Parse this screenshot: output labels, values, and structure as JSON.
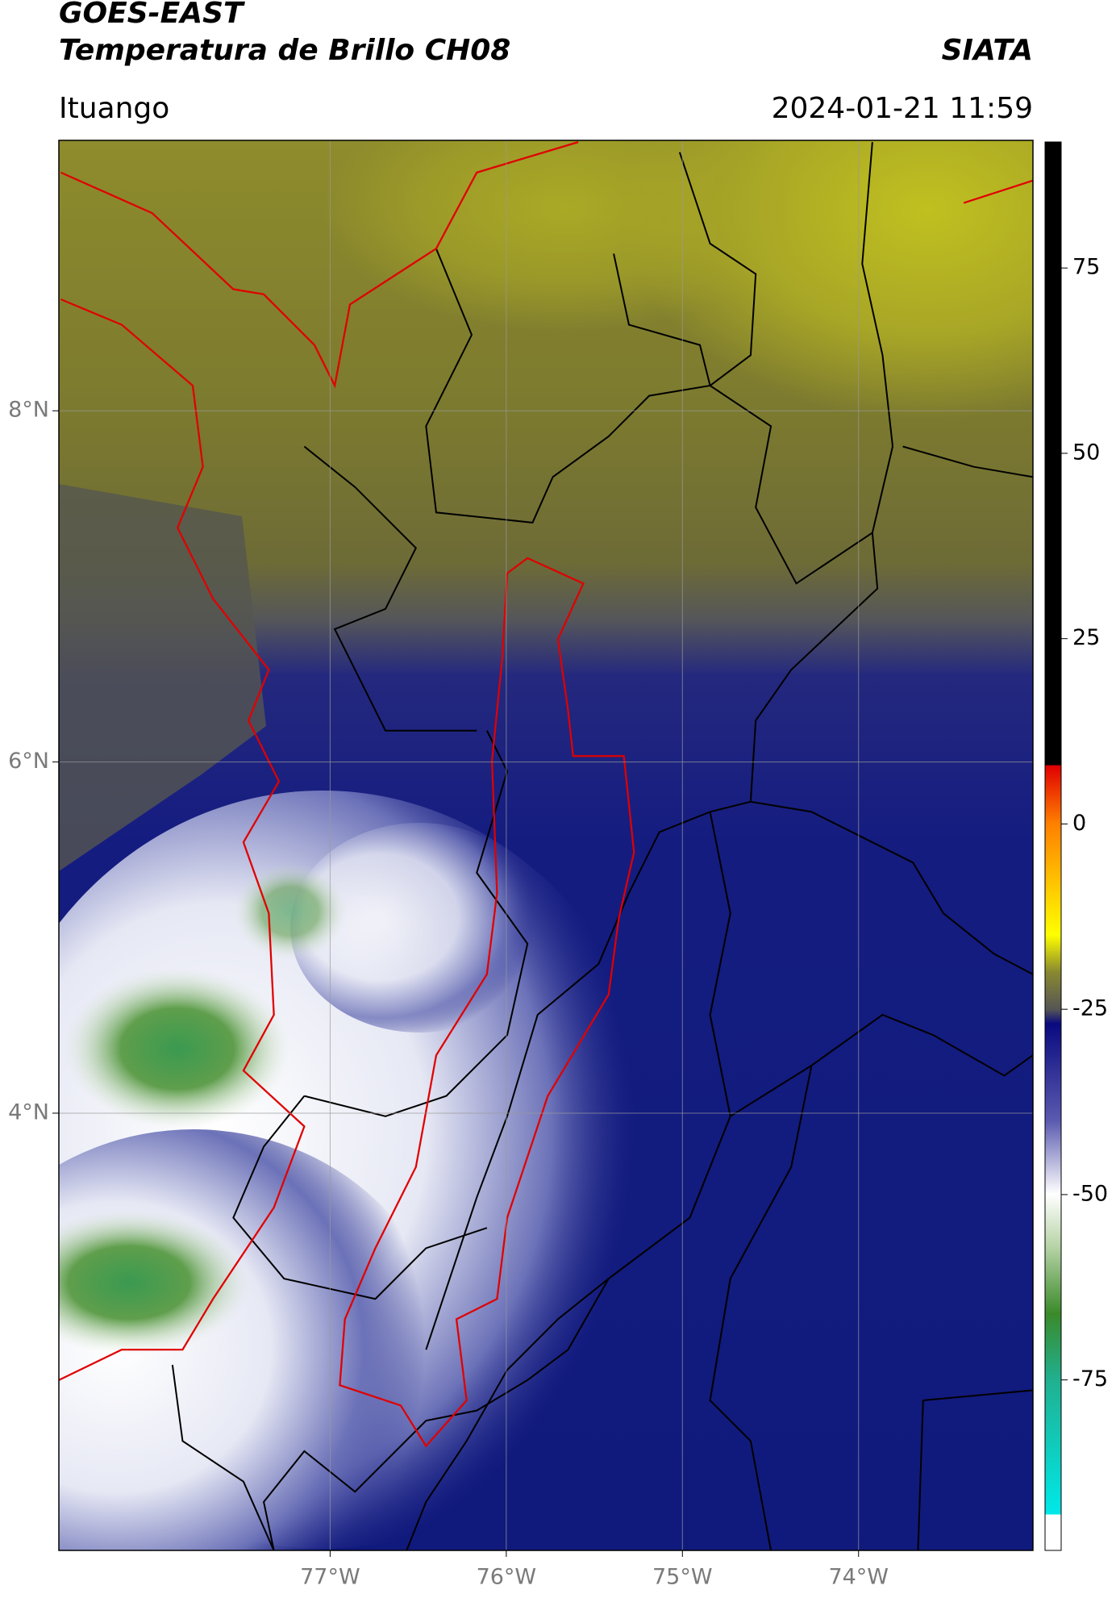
{
  "chart_data": {
    "type": "map",
    "title": "GOES-EAST",
    "subtitle": "Temperatura de Brillo CH08",
    "source": "SIATA",
    "location": "Ituango",
    "datetime": "2024-01-21 11:59",
    "xlim": [
      -78.54,
      -73.01
    ],
    "ylim": [
      1.51,
      9.54
    ],
    "xticks": [
      {
        "value": -77,
        "label": "77°W"
      },
      {
        "value": -76,
        "label": "76°W"
      },
      {
        "value": -75,
        "label": "75°W"
      },
      {
        "value": -74,
        "label": "74°W"
      }
    ],
    "yticks": [
      {
        "value": 8,
        "label": "8°N"
      },
      {
        "value": 6,
        "label": "6°N"
      },
      {
        "value": 4,
        "label": "4°N"
      }
    ],
    "grid": true,
    "colorbar": {
      "lim": [
        -98,
        92
      ],
      "ticks": [
        75,
        50,
        25,
        0,
        -25,
        -50,
        -75
      ]
    }
  }
}
